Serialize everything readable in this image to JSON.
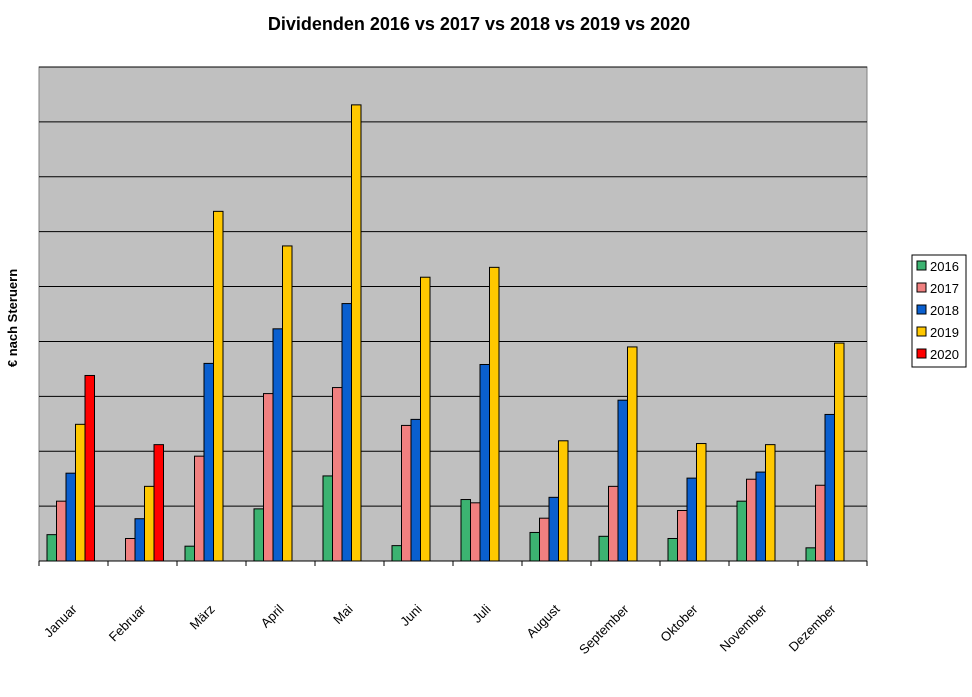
{
  "chart_data": {
    "type": "bar",
    "title": "Dividenden 2016 vs 2017 vs 2018 vs 2019 vs 2020",
    "xlabel": "",
    "ylabel": "€ nach Steruern",
    "ylim": [
      0,
      9
    ],
    "yticks_labeled": false,
    "grid": true,
    "legend_position": "right",
    "categories": [
      "Januar",
      "Februar",
      "März",
      "April",
      "Mai",
      "Juni",
      "Juli",
      "August",
      "September",
      "Oktober",
      "November",
      "Dezember"
    ],
    "series": [
      {
        "name": "2016",
        "color": "#3cb371",
        "values": [
          0.48,
          0,
          0.27,
          0.95,
          1.55,
          0.28,
          1.12,
          0.52,
          0.45,
          0.41,
          1.09,
          0.24
        ]
      },
      {
        "name": "2017",
        "color": "#f08080",
        "values": [
          1.09,
          0.41,
          1.91,
          3.05,
          3.16,
          2.47,
          1.06,
          0.78,
          1.36,
          0.92,
          1.49,
          1.38
        ]
      },
      {
        "name": "2018",
        "color": "#0a5fcf",
        "values": [
          1.6,
          0.77,
          3.6,
          4.23,
          4.69,
          2.58,
          3.58,
          1.16,
          2.93,
          1.51,
          1.62,
          2.67
        ]
      },
      {
        "name": "2019",
        "color": "#ffc800",
        "values": [
          2.49,
          1.36,
          6.37,
          5.74,
          8.31,
          5.17,
          5.35,
          2.19,
          3.9,
          2.14,
          2.12,
          3.97
        ]
      },
      {
        "name": "2020",
        "color": "#ff0000",
        "values": [
          3.38,
          2.12,
          null,
          null,
          null,
          null,
          null,
          null,
          null,
          null,
          null,
          null
        ]
      }
    ]
  }
}
